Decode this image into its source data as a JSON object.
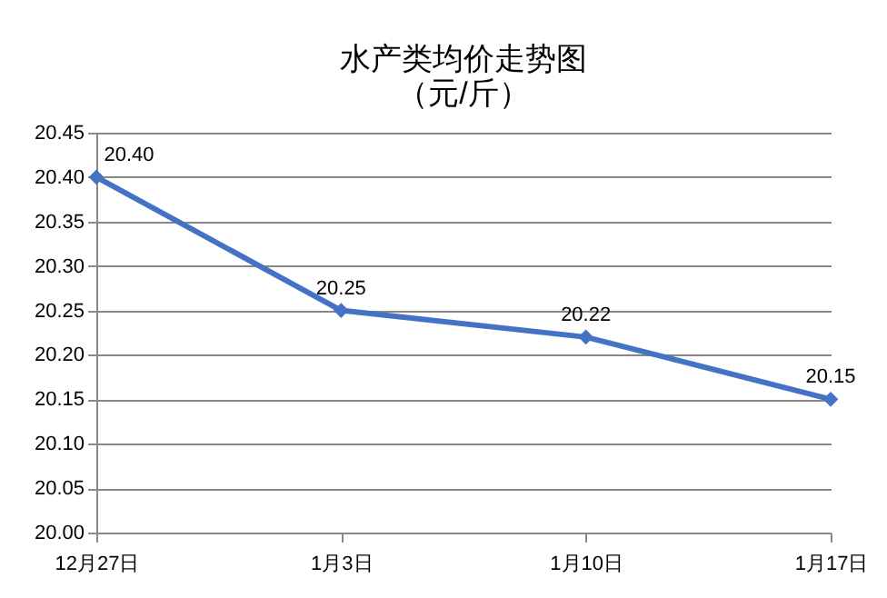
{
  "chart_data": {
    "type": "line",
    "title": "水产类均价走势图",
    "subtitle": "（元/斤）",
    "categories": [
      "12月27日",
      "1月3日",
      "1月10日",
      "1月17日"
    ],
    "series": [
      {
        "color": "#4472c4",
        "values": [
          20.4,
          20.25,
          20.22,
          20.15
        ],
        "value_labels": [
          "20.40",
          "20.25",
          "20.22",
          "20.15"
        ]
      }
    ],
    "ylim": [
      20.0,
      20.45
    ],
    "yticks": [
      {
        "value": 20.0,
        "label": "20.00"
      },
      {
        "value": 20.05,
        "label": "20.05"
      },
      {
        "value": 20.1,
        "label": "20.10"
      },
      {
        "value": 20.15,
        "label": "20.15"
      },
      {
        "value": 20.2,
        "label": "20.20"
      },
      {
        "value": 20.25,
        "label": "20.25"
      },
      {
        "value": 20.3,
        "label": "20.30"
      },
      {
        "value": 20.35,
        "label": "20.35"
      },
      {
        "value": 20.4,
        "label": "20.40"
      },
      {
        "value": 20.45,
        "label": "20.45"
      }
    ],
    "grid": "y",
    "marker": "diamond",
    "line_style": "solid"
  }
}
